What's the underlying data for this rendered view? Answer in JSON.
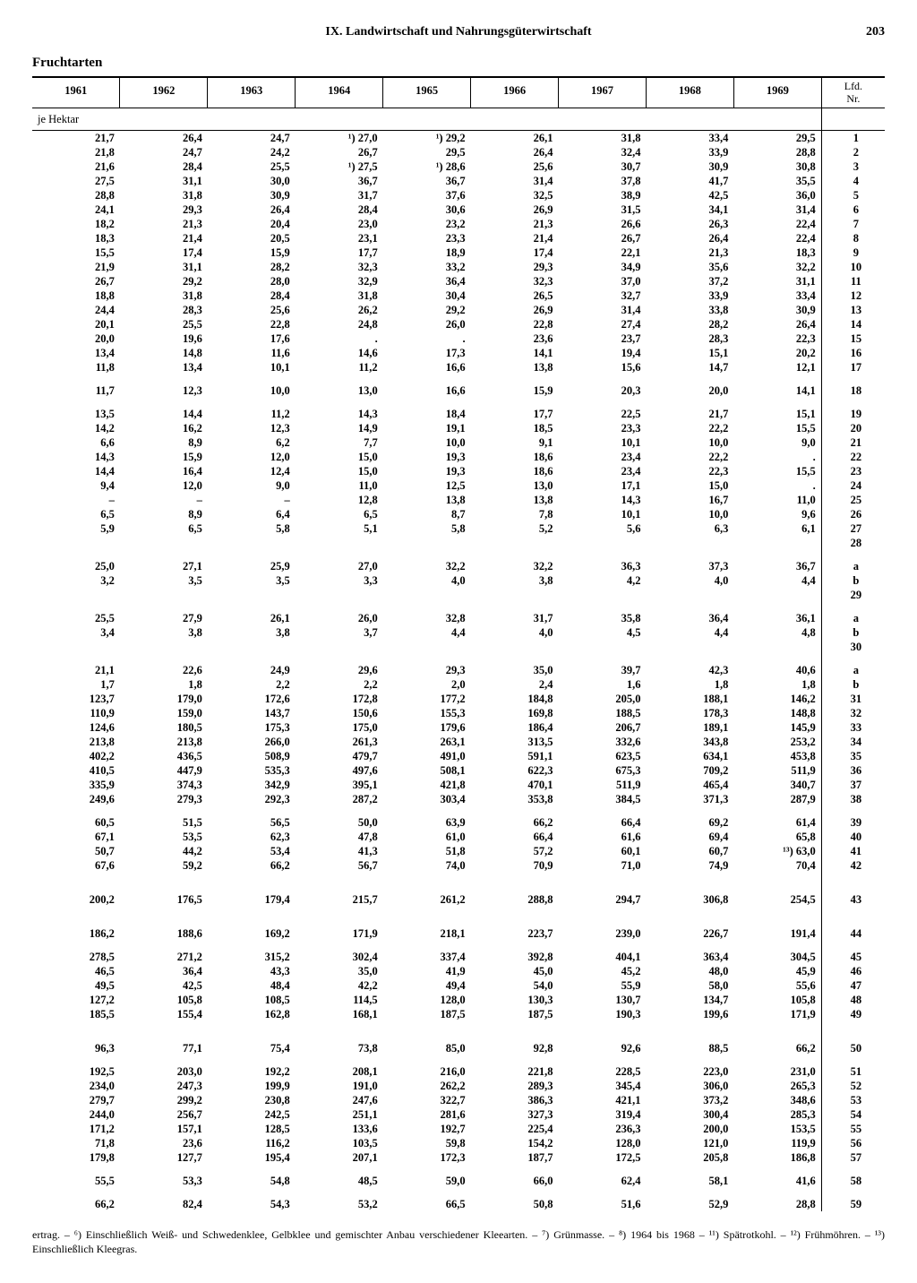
{
  "page_number": "203",
  "section_title": "IX. Landwirtschaft und Nahrungsgüterwirtschaft",
  "subtitle": "Fruchtarten",
  "unit_label": "je Hektar",
  "lfd_label": "Lfd.\nNr.",
  "years": [
    "1961",
    "1962",
    "1963",
    "1964",
    "1965",
    "1966",
    "1967",
    "1968",
    "1969"
  ],
  "groups": [
    {
      "rows": [
        {
          "c": [
            "21,7",
            "26,4",
            "24,7",
            "¹) 27,0",
            "¹) 29,2",
            "26,1",
            "31,8",
            "33,4",
            "29,5"
          ],
          "n": "1"
        },
        {
          "c": [
            "21,8",
            "24,7",
            "24,2",
            "26,7",
            "29,5",
            "26,4",
            "32,4",
            "33,9",
            "28,8"
          ],
          "n": "2"
        },
        {
          "c": [
            "21,6",
            "28,4",
            "25,5",
            "¹) 27,5",
            "¹) 28,6",
            "25,6",
            "30,7",
            "30,9",
            "30,8"
          ],
          "n": "3"
        },
        {
          "c": [
            "27,5",
            "31,1",
            "30,0",
            "36,7",
            "36,7",
            "31,4",
            "37,8",
            "41,7",
            "35,5"
          ],
          "n": "4"
        },
        {
          "c": [
            "28,8",
            "31,8",
            "30,9",
            "31,7",
            "37,6",
            "32,5",
            "38,9",
            "42,5",
            "36,0"
          ],
          "n": "5"
        },
        {
          "c": [
            "24,1",
            "29,3",
            "26,4",
            "28,4",
            "30,6",
            "26,9",
            "31,5",
            "34,1",
            "31,4"
          ],
          "n": "6"
        },
        {
          "c": [
            "18,2",
            "21,3",
            "20,4",
            "23,0",
            "23,2",
            "21,3",
            "26,6",
            "26,3",
            "22,4"
          ],
          "n": "7"
        },
        {
          "c": [
            "18,3",
            "21,4",
            "20,5",
            "23,1",
            "23,3",
            "21,4",
            "26,7",
            "26,4",
            "22,4"
          ],
          "n": "8"
        },
        {
          "c": [
            "15,5",
            "17,4",
            "15,9",
            "17,7",
            "18,9",
            "17,4",
            "22,1",
            "21,3",
            "18,3"
          ],
          "n": "9"
        },
        {
          "c": [
            "21,9",
            "31,1",
            "28,2",
            "32,3",
            "33,2",
            "29,3",
            "34,9",
            "35,6",
            "32,2"
          ],
          "n": "10"
        },
        {
          "c": [
            "26,7",
            "29,2",
            "28,0",
            "32,9",
            "36,4",
            "32,3",
            "37,0",
            "37,2",
            "31,1"
          ],
          "n": "11"
        },
        {
          "c": [
            "18,8",
            "31,8",
            "28,4",
            "31,8",
            "30,4",
            "26,5",
            "32,7",
            "33,9",
            "33,4"
          ],
          "n": "12"
        },
        {
          "c": [
            "24,4",
            "28,3",
            "25,6",
            "26,2",
            "29,2",
            "26,9",
            "31,4",
            "33,8",
            "30,9"
          ],
          "n": "13"
        },
        {
          "c": [
            "20,1",
            "25,5",
            "22,8",
            "24,8",
            "26,0",
            "22,8",
            "27,4",
            "28,2",
            "26,4"
          ],
          "n": "14"
        },
        {
          "c": [
            "20,0",
            "19,6",
            "17,6",
            ".",
            ".",
            "23,6",
            "23,7",
            "28,3",
            "22,3"
          ],
          "n": "15"
        },
        {
          "c": [
            "13,4",
            "14,8",
            "11,6",
            "14,6",
            "17,3",
            "14,1",
            "19,4",
            "15,1",
            "20,2"
          ],
          "n": "16"
        },
        {
          "c": [
            "11,8",
            "13,4",
            "10,1",
            "11,2",
            "16,6",
            "13,8",
            "15,6",
            "14,7",
            "12,1"
          ],
          "n": "17"
        }
      ]
    },
    {
      "rows": [
        {
          "c": [
            "11,7",
            "12,3",
            "10,0",
            "13,0",
            "16,6",
            "15,9",
            "20,3",
            "20,0",
            "14,1"
          ],
          "n": "18"
        }
      ]
    },
    {
      "rows": [
        {
          "c": [
            "13,5",
            "14,4",
            "11,2",
            "14,3",
            "18,4",
            "17,7",
            "22,5",
            "21,7",
            "15,1"
          ],
          "n": "19"
        },
        {
          "c": [
            "14,2",
            "16,2",
            "12,3",
            "14,9",
            "19,1",
            "18,5",
            "23,3",
            "22,2",
            "15,5"
          ],
          "n": "20"
        },
        {
          "c": [
            "6,6",
            "8,9",
            "6,2",
            "7,7",
            "10,0",
            "9,1",
            "10,1",
            "10,0",
            "9,0"
          ],
          "n": "21"
        },
        {
          "c": [
            "14,3",
            "15,9",
            "12,0",
            "15,0",
            "19,3",
            "18,6",
            "23,4",
            "22,2",
            "."
          ],
          "n": "22"
        },
        {
          "c": [
            "14,4",
            "16,4",
            "12,4",
            "15,0",
            "19,3",
            "18,6",
            "23,4",
            "22,3",
            "15,5"
          ],
          "n": "23"
        },
        {
          "c": [
            "9,4",
            "12,0",
            "9,0",
            "11,0",
            "12,5",
            "13,0",
            "17,1",
            "15,0",
            "."
          ],
          "n": "24"
        },
        {
          "c": [
            "–",
            "–",
            "–",
            "12,8",
            "13,8",
            "13,8",
            "14,3",
            "16,7",
            "11,0"
          ],
          "n": "25"
        },
        {
          "c": [
            "6,5",
            "8,9",
            "6,4",
            "6,5",
            "8,7",
            "7,8",
            "10,1",
            "10,0",
            "9,6"
          ],
          "n": "26"
        },
        {
          "c": [
            "5,9",
            "6,5",
            "5,8",
            "5,1",
            "5,8",
            "5,2",
            "5,6",
            "6,3",
            "6,1"
          ],
          "n": "27"
        },
        {
          "c": [
            "",
            "",
            "",
            "",
            "",
            "",
            "",
            "",
            ""
          ],
          "n": "28"
        }
      ]
    },
    {
      "rows": [
        {
          "c": [
            "25,0",
            "27,1",
            "25,9",
            "27,0",
            "32,2",
            "32,2",
            "36,3",
            "37,3",
            "36,7"
          ],
          "n": "a"
        },
        {
          "c": [
            "3,2",
            "3,5",
            "3,5",
            "3,3",
            "4,0",
            "3,8",
            "4,2",
            "4,0",
            "4,4"
          ],
          "n": "b"
        },
        {
          "c": [
            "",
            "",
            "",
            "",
            "",
            "",
            "",
            "",
            ""
          ],
          "n": "29"
        }
      ]
    },
    {
      "rows": [
        {
          "c": [
            "25,5",
            "27,9",
            "26,1",
            "26,0",
            "32,8",
            "31,7",
            "35,8",
            "36,4",
            "36,1"
          ],
          "n": "a"
        },
        {
          "c": [
            "3,4",
            "3,8",
            "3,8",
            "3,7",
            "4,4",
            "4,0",
            "4,5",
            "4,4",
            "4,8"
          ],
          "n": "b"
        },
        {
          "c": [
            "",
            "",
            "",
            "",
            "",
            "",
            "",
            "",
            ""
          ],
          "n": "30"
        }
      ]
    },
    {
      "rows": [
        {
          "c": [
            "21,1",
            "22,6",
            "24,9",
            "29,6",
            "29,3",
            "35,0",
            "39,7",
            "42,3",
            "40,6"
          ],
          "n": "a"
        },
        {
          "c": [
            "1,7",
            "1,8",
            "2,2",
            "2,2",
            "2,0",
            "2,4",
            "1,6",
            "1,8",
            "1,8"
          ],
          "n": "b"
        },
        {
          "c": [
            "123,7",
            "179,0",
            "172,6",
            "172,8",
            "177,2",
            "184,8",
            "205,0",
            "188,1",
            "146,2"
          ],
          "n": "31"
        },
        {
          "c": [
            "110,9",
            "159,0",
            "143,7",
            "150,6",
            "155,3",
            "169,8",
            "188,5",
            "178,3",
            "148,8"
          ],
          "n": "32"
        },
        {
          "c": [
            "124,6",
            "180,5",
            "175,3",
            "175,0",
            "179,6",
            "186,4",
            "206,7",
            "189,1",
            "145,9"
          ],
          "n": "33"
        },
        {
          "c": [
            "213,8",
            "213,8",
            "266,0",
            "261,3",
            "263,1",
            "313,5",
            "332,6",
            "343,8",
            "253,2"
          ],
          "n": "34"
        },
        {
          "c": [
            "402,2",
            "436,5",
            "508,9",
            "479,7",
            "491,0",
            "591,1",
            "623,5",
            "634,1",
            "453,8"
          ],
          "n": "35"
        },
        {
          "c": [
            "410,5",
            "447,9",
            "535,3",
            "497,6",
            "508,1",
            "622,3",
            "675,3",
            "709,2",
            "511,9"
          ],
          "n": "36"
        },
        {
          "c": [
            "335,9",
            "374,3",
            "342,9",
            "395,1",
            "421,8",
            "470,1",
            "511,9",
            "465,4",
            "340,7"
          ],
          "n": "37"
        },
        {
          "c": [
            "249,6",
            "279,3",
            "292,3",
            "287,2",
            "303,4",
            "353,8",
            "384,5",
            "371,3",
            "287,9"
          ],
          "n": "38"
        }
      ]
    },
    {
      "rows": [
        {
          "c": [
            "60,5",
            "51,5",
            "56,5",
            "50,0",
            "63,9",
            "66,2",
            "66,4",
            "69,2",
            "61,4"
          ],
          "n": "39"
        },
        {
          "c": [
            "67,1",
            "53,5",
            "62,3",
            "47,8",
            "61,0",
            "66,4",
            "61,6",
            "69,4",
            "65,8"
          ],
          "n": "40"
        },
        {
          "c": [
            "50,7",
            "44,2",
            "53,4",
            "41,3",
            "51,8",
            "57,2",
            "60,1",
            "60,7",
            "¹³) 63,0"
          ],
          "n": "41"
        },
        {
          "c": [
            "67,6",
            "59,2",
            "66,2",
            "56,7",
            "74,0",
            "70,9",
            "71,0",
            "74,9",
            "70,4"
          ],
          "n": "42"
        }
      ]
    },
    {
      "rows": [
        {
          "c": [
            "200,2",
            "176,5",
            "179,4",
            "215,7",
            "261,2",
            "288,8",
            "294,7",
            "306,8",
            "254,5"
          ],
          "n": "43"
        }
      ],
      "big": true
    },
    {
      "rows": [
        {
          "c": [
            "186,2",
            "188,6",
            "169,2",
            "171,9",
            "218,1",
            "223,7",
            "239,0",
            "226,7",
            "191,4"
          ],
          "n": "44"
        }
      ],
      "big": true
    },
    {
      "rows": [
        {
          "c": [
            "278,5",
            "271,2",
            "315,2",
            "302,4",
            "337,4",
            "392,8",
            "404,1",
            "363,4",
            "304,5"
          ],
          "n": "45"
        },
        {
          "c": [
            "46,5",
            "36,4",
            "43,3",
            "35,0",
            "41,9",
            "45,0",
            "45,2",
            "48,0",
            "45,9"
          ],
          "n": "46"
        },
        {
          "c": [
            "49,5",
            "42,5",
            "48,4",
            "42,2",
            "49,4",
            "54,0",
            "55,9",
            "58,0",
            "55,6"
          ],
          "n": "47"
        },
        {
          "c": [
            "127,2",
            "105,8",
            "108,5",
            "114,5",
            "128,0",
            "130,3",
            "130,7",
            "134,7",
            "105,8"
          ],
          "n": "48"
        },
        {
          "c": [
            "185,5",
            "155,4",
            "162,8",
            "168,1",
            "187,5",
            "187,5",
            "190,3",
            "199,6",
            "171,9"
          ],
          "n": "49"
        }
      ]
    },
    {
      "rows": [
        {
          "c": [
            "96,3",
            "77,1",
            "75,4",
            "73,8",
            "85,0",
            "92,8",
            "92,6",
            "88,5",
            "66,2"
          ],
          "n": "50"
        }
      ],
      "big": true
    },
    {
      "rows": [
        {
          "c": [
            "192,5",
            "203,0",
            "192,2",
            "208,1",
            "216,0",
            "221,8",
            "228,5",
            "223,0",
            "231,0"
          ],
          "n": "51"
        },
        {
          "c": [
            "234,0",
            "247,3",
            "199,9",
            "191,0",
            "262,2",
            "289,3",
            "345,4",
            "306,0",
            "265,3"
          ],
          "n": "52"
        },
        {
          "c": [
            "279,7",
            "299,2",
            "230,8",
            "247,6",
            "322,7",
            "386,3",
            "421,1",
            "373,2",
            "348,6"
          ],
          "n": "53"
        },
        {
          "c": [
            "244,0",
            "256,7",
            "242,5",
            "251,1",
            "281,6",
            "327,3",
            "319,4",
            "300,4",
            "285,3"
          ],
          "n": "54"
        },
        {
          "c": [
            "171,2",
            "157,1",
            "128,5",
            "133,6",
            "192,7",
            "225,4",
            "236,3",
            "200,0",
            "153,5"
          ],
          "n": "55"
        },
        {
          "c": [
            "71,8",
            "23,6",
            "116,2",
            "103,5",
            "59,8",
            "154,2",
            "128,0",
            "121,0",
            "119,9"
          ],
          "n": "56"
        },
        {
          "c": [
            "179,8",
            "127,7",
            "195,4",
            "207,1",
            "172,3",
            "187,7",
            "172,5",
            "205,8",
            "186,8"
          ],
          "n": "57"
        }
      ]
    },
    {
      "rows": [
        {
          "c": [
            "55,5",
            "53,3",
            "54,8",
            "48,5",
            "59,0",
            "66,0",
            "62,4",
            "58,1",
            "41,6"
          ],
          "n": "58"
        }
      ]
    },
    {
      "rows": [
        {
          "c": [
            "66,2",
            "82,4",
            "54,3",
            "53,2",
            "66,5",
            "50,8",
            "51,6",
            "52,9",
            "28,8"
          ],
          "n": "59"
        }
      ]
    }
  ],
  "footnote": "ertrag. – ⁶) Einschließlich Weiß- und Schwedenklee, Gelbklee und gemischter Anbau verschiedener Kleearten. – ⁷) Grünmasse. – ⁸) 1964 bis 1968 – ¹¹) Spätrotkohl. – ¹²) Frühmöhren. – ¹³) Einschließlich Kleegras."
}
